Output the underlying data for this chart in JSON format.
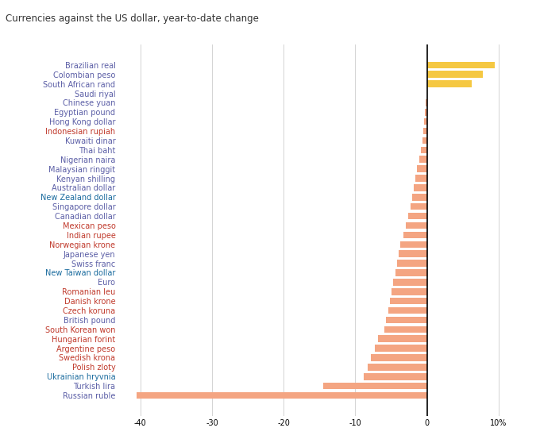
{
  "title": "Currencies against the US dollar, year-to-date change",
  "currencies": [
    "Brazilian real",
    "Colombian peso",
    "South African rand",
    "Saudi riyal",
    "Chinese yuan",
    "Egyptian pound",
    "Hong Kong dollar",
    "Indonesian rupiah",
    "Kuwaiti dinar",
    "Thai baht",
    "Nigerian naira",
    "Malaysian ringgit",
    "Kenyan shilling",
    "Australian dollar",
    "New Zealand dollar",
    "Singapore dollar",
    "Canadian dollar",
    "Mexican peso",
    "Indian rupee",
    "Norwegian krone",
    "Japanese yen",
    "Swiss franc",
    "New Taiwan dollar",
    "Euro",
    "Romanian leu",
    "Danish krone",
    "Czech koruna",
    "British pound",
    "South Korean won",
    "Hungarian forint",
    "Argentine peso",
    "Swedish krona",
    "Polish zloty",
    "Ukrainian hryvnia",
    "Turkish lira",
    "Russian ruble"
  ],
  "values": [
    9.5,
    7.8,
    6.2,
    0.05,
    -0.15,
    -0.3,
    -0.4,
    -0.5,
    -0.6,
    -0.9,
    -1.1,
    -1.4,
    -1.6,
    -1.9,
    -2.1,
    -2.3,
    -2.6,
    -3.0,
    -3.3,
    -3.7,
    -4.0,
    -4.2,
    -4.4,
    -4.7,
    -5.0,
    -5.2,
    -5.4,
    -5.7,
    -6.0,
    -6.8,
    -7.3,
    -7.8,
    -8.3,
    -8.8,
    -14.5,
    -40.5
  ],
  "label_colors": {
    "Brazilian real": "#5b5ea6",
    "Colombian peso": "#5b5ea6",
    "South African rand": "#5b5ea6",
    "Saudi riyal": "#5b5ea6",
    "Chinese yuan": "#5b5ea6",
    "Egyptian pound": "#5b5ea6",
    "Hong Kong dollar": "#5b5ea6",
    "Indonesian rupiah": "#c0392b",
    "Kuwaiti dinar": "#5b5ea6",
    "Thai baht": "#5b5ea6",
    "Nigerian naira": "#5b5ea6",
    "Malaysian ringgit": "#5b5ea6",
    "Kenyan shilling": "#5b5ea6",
    "Australian dollar": "#5b5ea6",
    "New Zealand dollar": "#1a6b9e",
    "Singapore dollar": "#5b5ea6",
    "Canadian dollar": "#5b5ea6",
    "Mexican peso": "#c0392b",
    "Indian rupee": "#c0392b",
    "Norwegian krone": "#c0392b",
    "Japanese yen": "#5b5ea6",
    "Swiss franc": "#5b5ea6",
    "New Taiwan dollar": "#1a6b9e",
    "Euro": "#5b5ea6",
    "Romanian leu": "#c0392b",
    "Danish krone": "#c0392b",
    "Czech koruna": "#c0392b",
    "British pound": "#5b5ea6",
    "South Korean won": "#c0392b",
    "Hungarian forint": "#c0392b",
    "Argentine peso": "#c0392b",
    "Swedish krona": "#c0392b",
    "Polish zloty": "#c0392b",
    "Ukrainian hryvnia": "#1a6b9e",
    "Turkish lira": "#5b5ea6",
    "Russian ruble": "#5b5ea6"
  },
  "positive_color": "#F5C842",
  "negative_color": "#F4A582",
  "title_fontsize": 8.5,
  "label_fontsize": 7,
  "tick_fontsize": 7,
  "xlim": [
    -43,
    12
  ],
  "xticks": [
    -40,
    -30,
    -20,
    -10,
    0,
    10
  ],
  "xticklabels": [
    "-40",
    "-30",
    "-20",
    "-10",
    "0",
    "10%"
  ],
  "grid_color": "#cccccc",
  "background_color": "#ffffff",
  "zero_line_color": "#000000",
  "bar_height": 0.72
}
